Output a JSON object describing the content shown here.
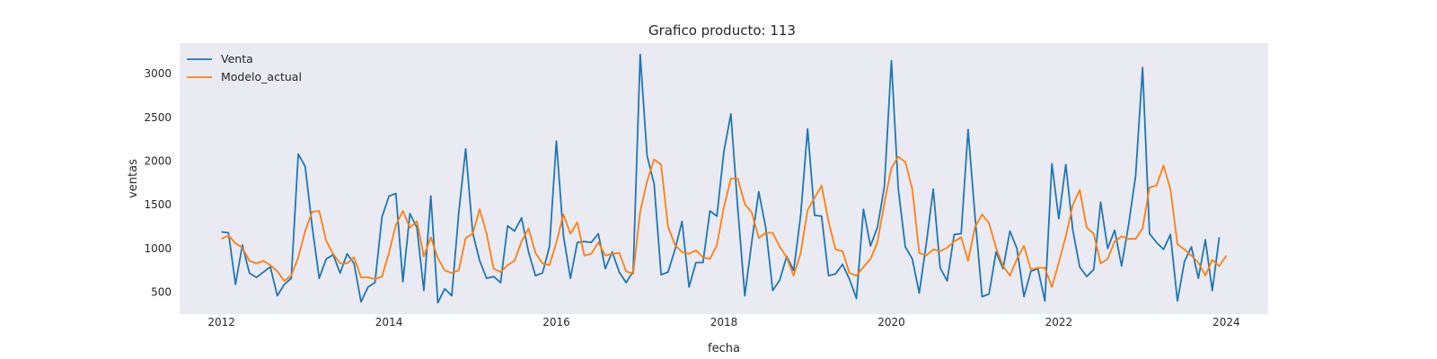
{
  "chart_data": {
    "type": "line",
    "title": "Grafico producto: 113",
    "xlabel": "fecha",
    "ylabel": "ventas",
    "x_start": "2012-01",
    "x_frequency": "monthly",
    "xlim": [
      "2011-07",
      "2024-07"
    ],
    "ylim": [
      250,
      3350
    ],
    "x_ticks": [
      {
        "label": "2012",
        "value": "2012-01"
      },
      {
        "label": "2014",
        "value": "2014-01"
      },
      {
        "label": "2016",
        "value": "2016-01"
      },
      {
        "label": "2018",
        "value": "2018-01"
      },
      {
        "label": "2020",
        "value": "2020-01"
      },
      {
        "label": "2022",
        "value": "2022-01"
      },
      {
        "label": "2024",
        "value": "2024-01"
      }
    ],
    "y_ticks": [
      500,
      1000,
      1500,
      2000,
      2500,
      3000
    ],
    "grid": false,
    "legend_position": "top-left",
    "background_color": "#eaeaf2",
    "series": [
      {
        "name": "Venta",
        "color": "#1f77b4",
        "values": [
          1190,
          1180,
          590,
          1040,
          720,
          670,
          730,
          790,
          460,
          590,
          660,
          2080,
          1940,
          1250,
          660,
          880,
          930,
          720,
          940,
          830,
          390,
          560,
          610,
          1360,
          1600,
          1630,
          620,
          1400,
          1240,
          520,
          1600,
          380,
          540,
          460,
          1410,
          2140,
          1180,
          860,
          660,
          680,
          610,
          1260,
          1200,
          1350,
          960,
          690,
          720,
          1020,
          2230,
          1150,
          660,
          1070,
          1080,
          1070,
          1170,
          770,
          960,
          730,
          610,
          740,
          3220,
          2060,
          1740,
          700,
          730,
          990,
          1310,
          560,
          840,
          840,
          1430,
          1370,
          2110,
          2540,
          1450,
          460,
          1080,
          1650,
          1240,
          520,
          640,
          910,
          750,
          1380,
          2370,
          1380,
          1370,
          690,
          710,
          820,
          650,
          430,
          1450,
          1030,
          1240,
          1710,
          3150,
          1680,
          1020,
          880,
          490,
          1050,
          1680,
          780,
          630,
          1160,
          1170,
          2360,
          1360,
          450,
          480,
          960,
          770,
          1200,
          1000,
          450,
          740,
          770,
          400,
          1970,
          1340,
          1960,
          1210,
          790,
          680,
          760,
          1530,
          1000,
          1210,
          800,
          1270,
          1830,
          3070,
          1170,
          1070,
          990,
          1160,
          400,
          850,
          1020,
          660,
          1100,
          520,
          1130
        ]
      },
      {
        "name": "Modelo_actual",
        "color": "#ff7f0e",
        "values": [
          1110,
          1150,
          1060,
          1010,
          860,
          830,
          860,
          810,
          740,
          630,
          690,
          900,
          1200,
          1420,
          1430,
          1090,
          940,
          830,
          830,
          900,
          670,
          670,
          650,
          680,
          950,
          1270,
          1430,
          1240,
          1310,
          910,
          1130,
          890,
          750,
          720,
          750,
          1120,
          1170,
          1450,
          1170,
          770,
          730,
          810,
          860,
          1080,
          1230,
          950,
          830,
          810,
          1070,
          1390,
          1170,
          1300,
          920,
          940,
          1070,
          920,
          940,
          950,
          740,
          710,
          1420,
          1770,
          2020,
          1960,
          1250,
          1040,
          960,
          940,
          980,
          900,
          880,
          1040,
          1470,
          1800,
          1800,
          1510,
          1410,
          1120,
          1180,
          1180,
          1020,
          900,
          690,
          950,
          1440,
          1580,
          1720,
          1310,
          990,
          970,
          720,
          690,
          790,
          880,
          1070,
          1520,
          1920,
          2050,
          1990,
          1680,
          950,
          920,
          990,
          970,
          1010,
          1080,
          1130,
          860,
          1250,
          1390,
          1290,
          1010,
          800,
          690,
          880,
          1030,
          760,
          780,
          780,
          560,
          840,
          1140,
          1500,
          1670,
          1240,
          1170,
          830,
          880,
          1080,
          1140,
          1110,
          1110,
          1230,
          1700,
          1720,
          1950,
          1680,
          1050,
          990,
          920,
          840,
          690,
          870,
          800,
          920
        ]
      }
    ]
  }
}
